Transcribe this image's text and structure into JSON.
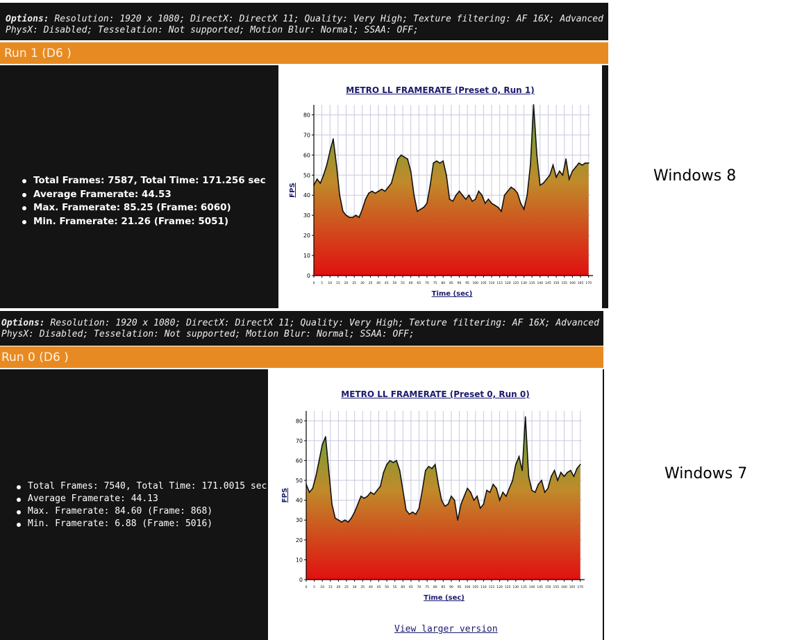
{
  "panels": [
    {
      "options_label": "Options:",
      "options_text": " Resolution: 1920 x 1080; DirectX: DirectX 11; Quality: Very High; Texture filtering: AF 16X; Advanced PhysX: Disabled; Tesselation: Not supported; Motion Blur: Normal; SSAA: OFF;",
      "run_label": "Run 1 (D6 )",
      "stats": [
        "Total Frames: 7587, Total Time: 171.256 sec",
        "Average Framerate: 44.53",
        "Max. Framerate: 85.25 (Frame: 6060)",
        "Min. Framerate: 21.26 (Frame: 5051)"
      ],
      "os_label": "Windows 8"
    },
    {
      "options_label": "Options:",
      "options_text": " Resolution: 1920 x 1080; DirectX: DirectX 11; Quality: Very High; Texture filtering: AF 16X; Advanced PhysX: Disabled; Tesselation: Not supported; Motion Blur: Normal; SSAA: OFF;",
      "run_label": "Run 0 (D6 )",
      "stats": [
        "Total Frames: 7540, Total Time: 171.0015 sec",
        "Average Framerate: 44.13",
        "Max. Framerate: 84.60 (Frame: 868)",
        "Min. Framerate: 6.88 (Frame: 5016)"
      ],
      "os_label": "Windows 7",
      "link_text": "View larger version"
    }
  ],
  "colors": {
    "accent": "#e88a22",
    "dark_bg": "#141414",
    "fill_top": "#5aa83c",
    "fill_bottom": "#e01010",
    "link": "#1a1a6e"
  },
  "chart_data": [
    {
      "type": "area",
      "title": "METRO LL FRAMERATE (Preset 0, Run 1)",
      "xlabel": "Time (sec)",
      "ylabel": "FPS",
      "xlim": [
        0,
        171
      ],
      "ylim": [
        0,
        85
      ],
      "yticks": [
        0,
        10,
        20,
        30,
        40,
        50,
        60,
        70,
        80
      ],
      "xticks": [
        0,
        5,
        10,
        15,
        20,
        25,
        30,
        35,
        40,
        45,
        50,
        55,
        60,
        65,
        70,
        75,
        80,
        85,
        90,
        95,
        100,
        105,
        110,
        115,
        120,
        125,
        130,
        135,
        140,
        145,
        150,
        155,
        160,
        165,
        170
      ],
      "grid": true,
      "x": [
        0,
        2,
        4,
        6,
        8,
        10,
        12,
        14,
        16,
        18,
        20,
        22,
        24,
        26,
        28,
        30,
        32,
        34,
        36,
        38,
        40,
        42,
        44,
        46,
        48,
        50,
        52,
        54,
        56,
        58,
        60,
        62,
        64,
        66,
        68,
        70,
        72,
        74,
        76,
        78,
        80,
        82,
        84,
        86,
        88,
        90,
        92,
        94,
        96,
        98,
        100,
        102,
        104,
        106,
        108,
        110,
        112,
        114,
        116,
        118,
        120,
        122,
        124,
        126,
        128,
        130,
        132,
        134,
        136,
        138,
        140,
        142,
        144,
        146,
        148,
        150,
        152,
        154,
        156,
        158,
        160,
        162,
        164,
        166,
        168,
        170
      ],
      "y": [
        45,
        48,
        46,
        50,
        55,
        62,
        68,
        55,
        40,
        32,
        30,
        29,
        29,
        30,
        29,
        33,
        38,
        41,
        42,
        41,
        42,
        43,
        42,
        44,
        46,
        52,
        58,
        60,
        59,
        58,
        52,
        40,
        32,
        33,
        34,
        36,
        45,
        56,
        57,
        56,
        57,
        50,
        38,
        37,
        40,
        42,
        40,
        38,
        40,
        37,
        38,
        42,
        40,
        36,
        38,
        36,
        35,
        34,
        32,
        40,
        42,
        44,
        43,
        41,
        36,
        33,
        40,
        55,
        85,
        60,
        45,
        46,
        48,
        50,
        55,
        49,
        52,
        50,
        58,
        48,
        52,
        54,
        56,
        55,
        56,
        56
      ]
    },
    {
      "type": "area",
      "title": "METRO LL FRAMERATE (Preset 0, Run 0)",
      "xlabel": "Time (sec)",
      "ylabel": "FPS",
      "xlim": [
        0,
        171
      ],
      "ylim": [
        0,
        85
      ],
      "yticks": [
        0,
        10,
        20,
        30,
        40,
        50,
        60,
        70,
        80
      ],
      "xticks": [
        0,
        5,
        10,
        15,
        20,
        25,
        30,
        35,
        40,
        45,
        50,
        55,
        60,
        65,
        70,
        75,
        80,
        85,
        90,
        95,
        100,
        105,
        110,
        115,
        120,
        125,
        130,
        135,
        140,
        145,
        150,
        155,
        160,
        165,
        170
      ],
      "grid": true,
      "x": [
        0,
        2,
        4,
        6,
        8,
        10,
        12,
        14,
        16,
        18,
        20,
        22,
        24,
        26,
        28,
        30,
        32,
        34,
        36,
        38,
        40,
        42,
        44,
        46,
        48,
        50,
        52,
        54,
        56,
        58,
        60,
        62,
        64,
        66,
        68,
        70,
        72,
        74,
        76,
        78,
        80,
        82,
        84,
        86,
        88,
        90,
        92,
        94,
        96,
        98,
        100,
        102,
        104,
        106,
        108,
        110,
        112,
        114,
        116,
        118,
        120,
        122,
        124,
        126,
        128,
        130,
        132,
        134,
        136,
        138,
        140,
        142,
        144,
        146,
        148,
        150,
        152,
        154,
        156,
        158,
        160,
        162,
        164,
        166,
        168,
        170
      ],
      "y": [
        48,
        44,
        46,
        52,
        60,
        68,
        72,
        55,
        38,
        31,
        30,
        29,
        30,
        29,
        31,
        34,
        38,
        42,
        41,
        42,
        44,
        43,
        45,
        47,
        54,
        58,
        60,
        59,
        60,
        55,
        45,
        35,
        33,
        34,
        33,
        36,
        45,
        55,
        57,
        56,
        58,
        48,
        40,
        37,
        38,
        42,
        40,
        30,
        38,
        42,
        46,
        44,
        40,
        42,
        36,
        38,
        45,
        44,
        48,
        46,
        40,
        44,
        42,
        46,
        50,
        58,
        62,
        55,
        82,
        52,
        45,
        44,
        48,
        50,
        44,
        46,
        52,
        55,
        50,
        54,
        52,
        54,
        55,
        52,
        56,
        58
      ]
    }
  ]
}
